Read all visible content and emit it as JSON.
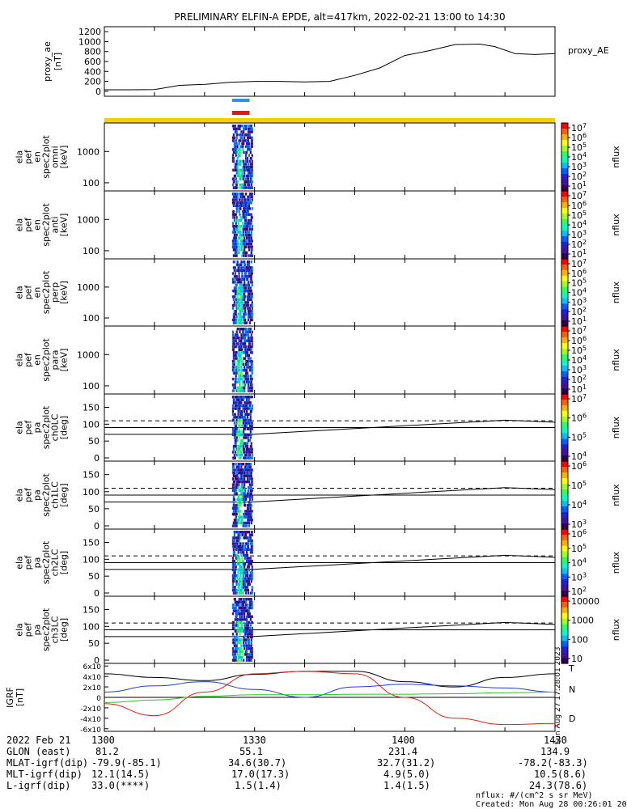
{
  "title": "PRELIMINARY ELFIN-A EPDE, alt=417km, 2022-02-21 13:00 to 14:30",
  "chart_data": [
    {
      "type": "line",
      "name": "proxy_ae",
      "ylabel": "proxy_ae [nT]",
      "legend": "proxy_AE",
      "yticks": [
        "1200",
        "1000",
        "800",
        "600",
        "400",
        "200",
        "0"
      ],
      "ylim": [
        -100,
        1300
      ],
      "x_minutes": [
        0,
        5,
        10,
        15,
        20,
        25,
        30,
        35,
        40,
        45,
        50,
        55,
        60,
        65,
        70,
        75,
        78,
        82,
        86,
        90
      ],
      "values": [
        30,
        30,
        35,
        120,
        140,
        180,
        200,
        200,
        190,
        200,
        320,
        470,
        720,
        820,
        940,
        950,
        900,
        760,
        740,
        760
      ]
    },
    {
      "type": "heatmap",
      "panels": [
        {
          "ylabel": [
            "ela",
            "pef",
            "en",
            "spec2plot",
            "omni",
            "[keV]"
          ],
          "yticks": [
            "1000",
            "100"
          ],
          "cbar_label": "nflux",
          "cbar_ticks": [
            "10^7",
            "10^6",
            "10^5",
            "10^4",
            "10^3",
            "10^2",
            "10^1"
          ]
        },
        {
          "ylabel": [
            "ela",
            "pef",
            "en",
            "spec2plot",
            "anti",
            "[keV]"
          ],
          "yticks": [
            "1000",
            "100"
          ],
          "cbar_label": "nflux",
          "cbar_ticks": [
            "10^7",
            "10^6",
            "10^5",
            "10^4",
            "10^3",
            "10^2",
            "10^1"
          ]
        },
        {
          "ylabel": [
            "ela",
            "pef",
            "en",
            "spec2plot",
            "perp",
            "[keV]"
          ],
          "yticks": [
            "1000",
            "100"
          ],
          "cbar_label": "nflux",
          "cbar_ticks": [
            "10^7",
            "10^6",
            "10^5",
            "10^4",
            "10^3",
            "10^2",
            "10^1"
          ]
        },
        {
          "ylabel": [
            "ela",
            "pef",
            "en",
            "spec2plot",
            "para",
            "[keV]"
          ],
          "yticks": [
            "1000",
            "100"
          ],
          "cbar_label": "nflux",
          "cbar_ticks": [
            "10^7",
            "10^6",
            "10^5",
            "10^4",
            "10^3",
            "10^2",
            "10^1"
          ]
        },
        {
          "ylabel": [
            "ela",
            "pef",
            "pa",
            "spec2plot",
            "ch0LC",
            "[deg]"
          ],
          "yticks": [
            "150",
            "100",
            "50",
            "0"
          ],
          "cbar_label": "nflux",
          "cbar_ticks": [
            "10^7",
            "10^6",
            "10^5",
            "10^4"
          ]
        },
        {
          "ylabel": [
            "ela",
            "pef",
            "pa",
            "spec2plot",
            "ch1LC",
            "[deg]"
          ],
          "yticks": [
            "150",
            "100",
            "50",
            "0"
          ],
          "cbar_label": "nflux",
          "cbar_ticks": [
            "10^6",
            "10^5",
            "10^4",
            "10^3"
          ]
        },
        {
          "ylabel": [
            "ela",
            "pef",
            "pa",
            "spec2plot",
            "ch2LC",
            "[deg]"
          ],
          "yticks": [
            "150",
            "100",
            "50",
            "0"
          ],
          "cbar_label": "nflux",
          "cbar_ticks": [
            "10^6",
            "10^5",
            "10^4",
            "10^3",
            "10^2"
          ]
        },
        {
          "ylabel": [
            "ela",
            "pef",
            "pa",
            "spec2plot",
            "ch3LC",
            "[deg]"
          ],
          "yticks": [
            "150",
            "100",
            "50",
            "0"
          ],
          "cbar_label": "nflux",
          "cbar_ticks": [
            "10000",
            "1000",
            "100",
            "10"
          ]
        }
      ]
    },
    {
      "type": "line",
      "name": "IGRF",
      "ylabel": "IGRF [nT]",
      "yticks": [
        "6x10^4",
        "4x10^4",
        "2x10^4",
        "0",
        "-2x10^4",
        "-4x10^4",
        "-6x10^4"
      ],
      "ylim": [
        -65000,
        65000
      ],
      "legend": [
        "T",
        "N",
        "D"
      ],
      "x_minutes": [
        0,
        10,
        20,
        30,
        40,
        50,
        60,
        70,
        80,
        90
      ],
      "series": [
        {
          "name": "T",
          "color": "#000000",
          "values": [
            45000,
            38000,
            32000,
            44000,
            50000,
            50000,
            30000,
            20000,
            38000,
            45000
          ]
        },
        {
          "name": "N",
          "color": "#1f3fd0",
          "values": [
            10000,
            22000,
            30000,
            15000,
            0,
            20000,
            25000,
            22000,
            18000,
            10000
          ]
        },
        {
          "name": "D",
          "color": "#e02010",
          "values": [
            -12000,
            -35000,
            10000,
            45000,
            50000,
            45000,
            0,
            -40000,
            -52000,
            -50000
          ]
        },
        {
          "name": "",
          "color": "#30c030",
          "values": [
            -10000,
            -5000,
            2000,
            5000,
            5000,
            6000,
            6000,
            7000,
            9000,
            10000
          ]
        }
      ]
    }
  ],
  "timestamp_vertical": "Sun Aug 27 17:28:01 2023",
  "footer": {
    "date": "2022 Feb 21",
    "rows": [
      {
        "label": "GLON (east)",
        "values": [
          "81.2",
          "55.1",
          "231.4",
          "134.9"
        ]
      },
      {
        "label": "MLAT-igrf(dip)",
        "values": [
          "-79.9(-85.1)",
          "34.6(30.7)",
          "32.7(31.2)",
          "-78.2(-83.3)"
        ]
      },
      {
        "label": "MLT-igrf(dip)",
        "values": [
          "12.1(14.5)",
          "17.0(17.3)",
          "4.9(5.0)",
          "10.5(8.6)"
        ]
      },
      {
        "label": "L-igrf(dip)",
        "values": [
          "33.0(****)",
          "1.5(1.4)",
          "1.4(1.5)",
          "24.3(78.6)"
        ]
      }
    ],
    "times": [
      "1300",
      "1330",
      "1400",
      "1430"
    ],
    "nflux_note": "nflux: #/(cm^2 s sr MeV)",
    "created": "Created: Mon Aug 28 00:26:01 2023"
  }
}
